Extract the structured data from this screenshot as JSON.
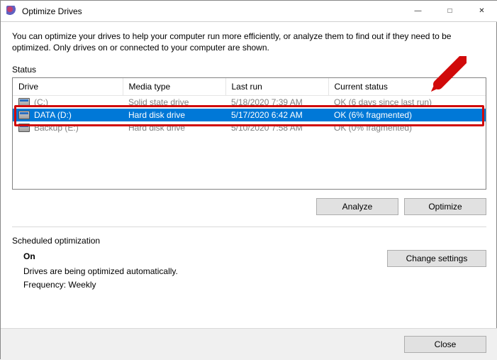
{
  "window": {
    "title": "Optimize Drives"
  },
  "intro": "You can optimize your drives to help your computer run more efficiently, or analyze them to find out if they need to be optimized. Only drives on or connected to your computer are shown.",
  "status_label": "Status",
  "columns": {
    "drive": "Drive",
    "media": "Media type",
    "last": "Last run",
    "status": "Current status"
  },
  "rows": [
    {
      "drive": "(C:)",
      "media": "Solid state drive",
      "last": "5/18/2020 7:39 AM",
      "status": "OK (6 days since last run)",
      "selected": false,
      "dim": true
    },
    {
      "drive": "DATA (D:)",
      "media": "Hard disk drive",
      "last": "5/17/2020 6:42 AM",
      "status": "OK (6% fragmented)",
      "selected": true,
      "dim": false
    },
    {
      "drive": "Backup (E:)",
      "media": "Hard disk drive",
      "last": "5/10/2020 7:58 AM",
      "status": "OK (0% fragmented)",
      "selected": false,
      "dim": true
    }
  ],
  "buttons": {
    "analyze": "Analyze",
    "optimize": "Optimize",
    "change": "Change settings",
    "close": "Close"
  },
  "sched": {
    "label": "Scheduled optimization",
    "on": "On",
    "desc": "Drives are being optimized automatically.",
    "freq": "Frequency: Weekly"
  },
  "annotation": {
    "arrow_color": "#d10a0a",
    "box_color": "#d10a0a"
  },
  "colors": {
    "selection_bg": "#0078d7",
    "selection_fg": "#ffffff",
    "dim_fg": "#808080"
  }
}
